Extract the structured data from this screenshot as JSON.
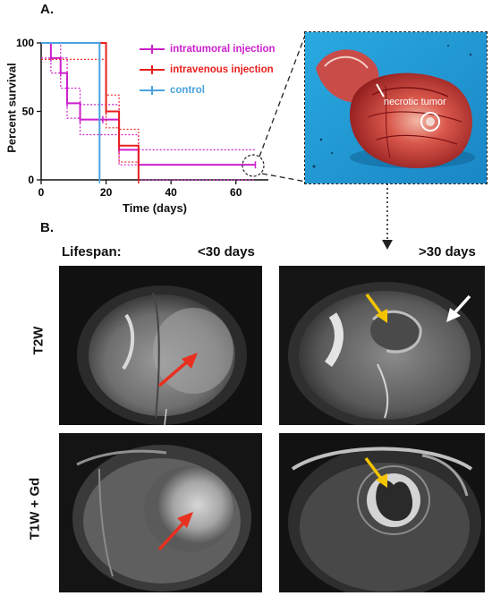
{
  "panel_a": {
    "label": "A.",
    "chart_data": {
      "type": "line",
      "xlabel": "Time (days)",
      "ylabel": "Percent survival",
      "xlim": [
        0,
        70
      ],
      "ylim": [
        0,
        100
      ],
      "x_ticks": [
        "0",
        "20",
        "40",
        "60"
      ],
      "y_ticks": [
        "0",
        "50",
        "100"
      ],
      "legend_position": "top-right",
      "series": [
        {
          "name": "intratumoral injection",
          "color": "#cc1fcc",
          "x": [
            0,
            3,
            6,
            8,
            12,
            19,
            24,
            30,
            66
          ],
          "y": [
            100,
            89,
            78,
            56,
            44,
            44,
            22,
            11,
            11
          ]
        },
        {
          "name": "intravenous injection",
          "color": "#e8201e",
          "x": [
            0,
            20,
            24,
            30
          ],
          "y": [
            100,
            50,
            25,
            0
          ]
        },
        {
          "name": "control",
          "color": "#4aa3df",
          "x": [
            0,
            18
          ],
          "y": [
            100,
            0
          ]
        }
      ]
    },
    "photo_annotation": "necrotic tumor"
  },
  "panel_b": {
    "label": "B.",
    "lifespan_label": "Lifespan:",
    "col_short": "<30 days",
    "col_long": ">30 days",
    "row_t2w": "T2W",
    "row_t1w": "T1W + Gd",
    "arrow_colors": {
      "red": "#e8301f",
      "yellow": "#f5c400",
      "white": "#ffffff"
    }
  }
}
